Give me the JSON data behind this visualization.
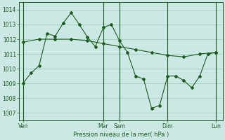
{
  "title": "",
  "xlabel": "Pression niveau de la mer( hPa )",
  "background_color": "#cce8e4",
  "grid_color": "#99ccbb",
  "line_color": "#1a5c1a",
  "ylim": [
    1006.5,
    1014.5
  ],
  "yticks": [
    1007,
    1008,
    1009,
    1010,
    1011,
    1012,
    1013,
    1014
  ],
  "day_labels": [
    "Ven",
    "Mar",
    "Sam",
    "Dim",
    "Lun"
  ],
  "day_positions": [
    0,
    60,
    72,
    108,
    144
  ],
  "xlim": [
    -3,
    149
  ],
  "series1_x": [
    0,
    6,
    12,
    18,
    24,
    30,
    36,
    42,
    48,
    54,
    60,
    66,
    72,
    78,
    84,
    90,
    96,
    102,
    108,
    114,
    120,
    126,
    132,
    138,
    144
  ],
  "series1_y": [
    1009.0,
    1009.7,
    1010.2,
    1012.4,
    1012.2,
    1013.1,
    1013.8,
    1013.0,
    1012.15,
    1011.5,
    1012.8,
    1013.0,
    1011.9,
    1011.1,
    1009.5,
    1009.3,
    1007.3,
    1007.5,
    1009.5,
    1009.5,
    1009.2,
    1008.7,
    1009.5,
    1011.0,
    1011.1
  ],
  "series2_x": [
    0,
    12,
    24,
    36,
    48,
    60,
    72,
    84,
    96,
    108,
    120,
    132,
    144
  ],
  "series2_y": [
    1011.8,
    1012.0,
    1012.0,
    1012.0,
    1011.9,
    1011.7,
    1011.5,
    1011.3,
    1011.1,
    1010.9,
    1010.8,
    1011.0,
    1011.1
  ],
  "figsize": [
    3.2,
    2.0
  ],
  "dpi": 100
}
